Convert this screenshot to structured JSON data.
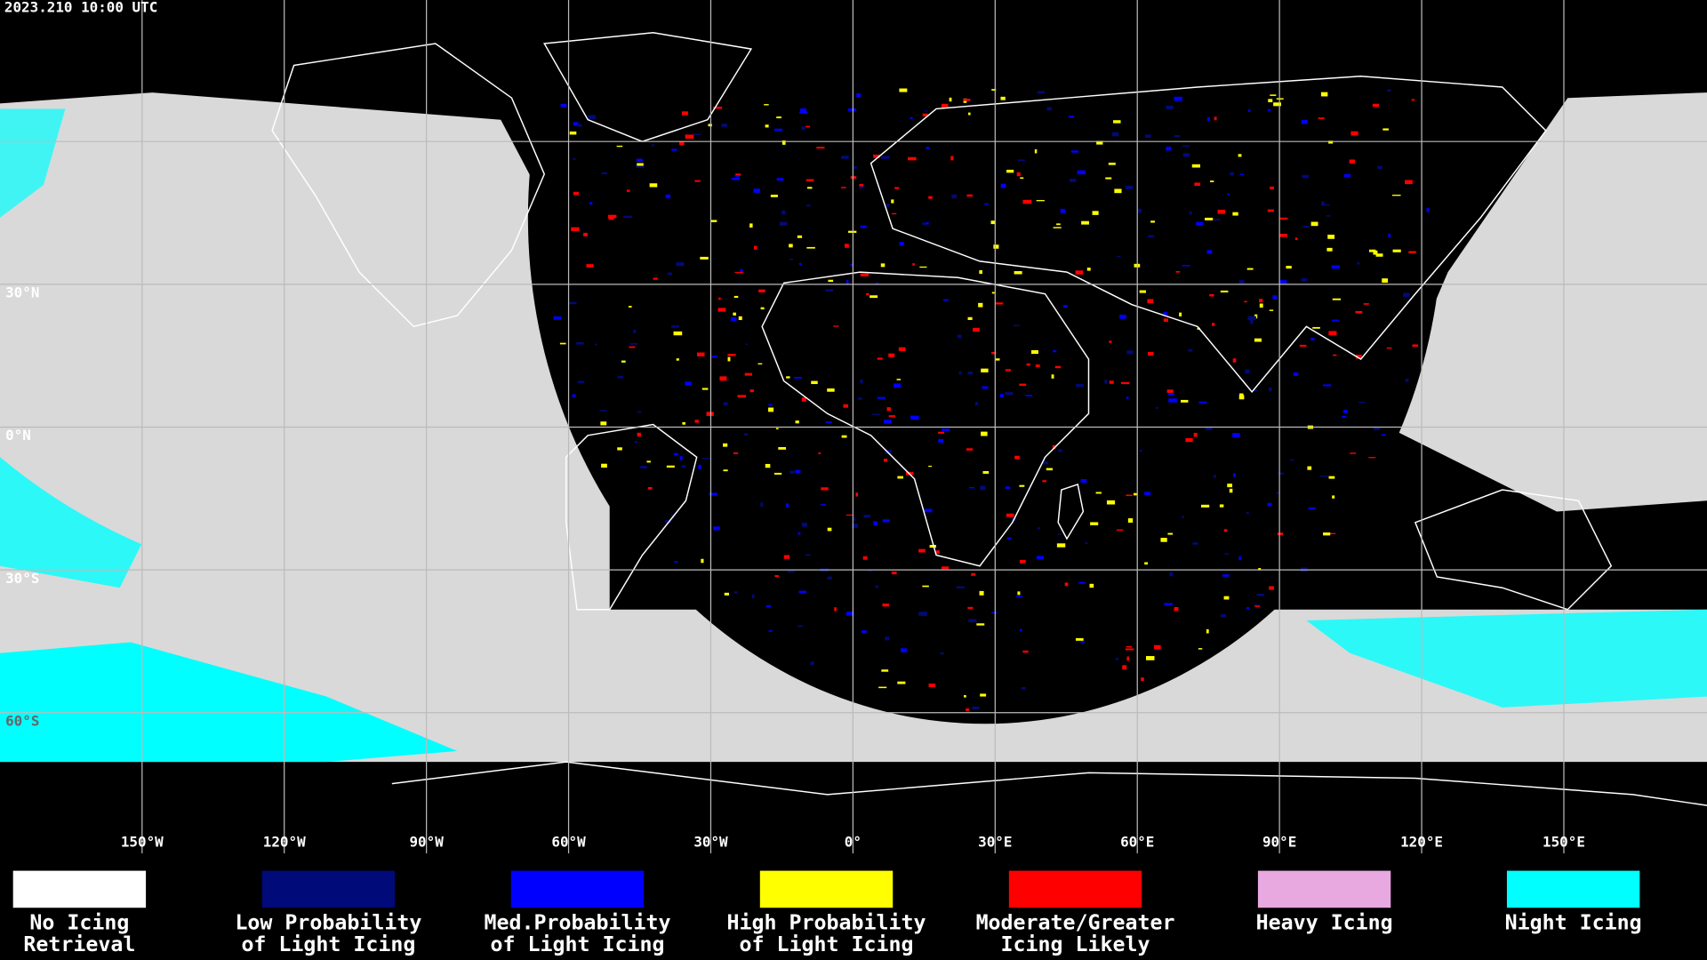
{
  "timestamp": "2023.210 10:00 UTC",
  "map": {
    "longitude_labels": [
      "150°W",
      "120°W",
      "90°W",
      "60°W",
      "30°W",
      "0°",
      "30°E",
      "60°E",
      "90°E",
      "120°E",
      "150°E"
    ],
    "latitude_labels": [
      "30°N",
      "0°N",
      "30°S",
      "60°S"
    ]
  },
  "legend": [
    {
      "lines": [
        "No Icing",
        "Retrieval"
      ],
      "color": "#ffffff"
    },
    {
      "lines": [
        "Low Probability",
        "of Light Icing"
      ],
      "color": "#000a78"
    },
    {
      "lines": [
        "Med.Probability",
        "of Light Icing"
      ],
      "color": "#0000ff"
    },
    {
      "lines": [
        "High Probability",
        "of Light Icing"
      ],
      "color": "#ffff00"
    },
    {
      "lines": [
        "Moderate/Greater",
        "Icing Likely"
      ],
      "color": "#ff0000"
    },
    {
      "lines": [
        "Heavy Icing"
      ],
      "color": "#e8a8e0"
    },
    {
      "lines": [
        "Night Icing"
      ],
      "color": "#00ffff"
    }
  ]
}
